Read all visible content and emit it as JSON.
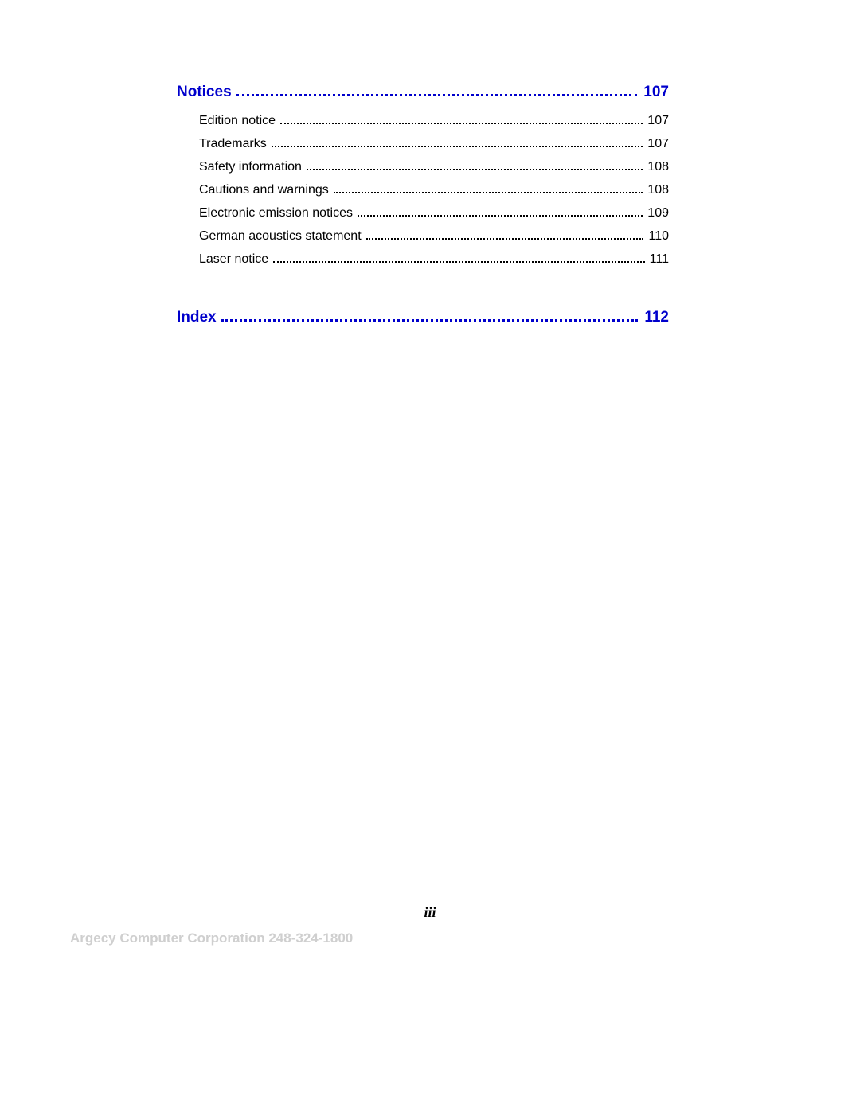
{
  "toc": {
    "sections": [
      {
        "title": "Notices",
        "page": "107",
        "items": [
          {
            "title": "Edition notice",
            "page": "107"
          },
          {
            "title": "Trademarks",
            "page": "107"
          },
          {
            "title": "Safety information",
            "page": "108"
          },
          {
            "title": "Cautions and warnings",
            "page": "108"
          },
          {
            "title": "Electronic emission notices",
            "page": "109"
          },
          {
            "title": "German acoustics statement",
            "page": "110"
          },
          {
            "title": "Laser notice",
            "page": "111"
          }
        ]
      },
      {
        "title": "Index",
        "page": "112",
        "items": []
      }
    ]
  },
  "page_number": "iii",
  "footer": "Argecy Computer Corporation 248-324-1800",
  "colors": {
    "heading": "#0000cc",
    "body": "#000000",
    "footer": "#cfcfcf",
    "background": "#ffffff"
  },
  "typography": {
    "heading_fontsize": 19,
    "sub_fontsize": 16,
    "page_number_fontsize": 18,
    "footer_fontsize": 17
  }
}
